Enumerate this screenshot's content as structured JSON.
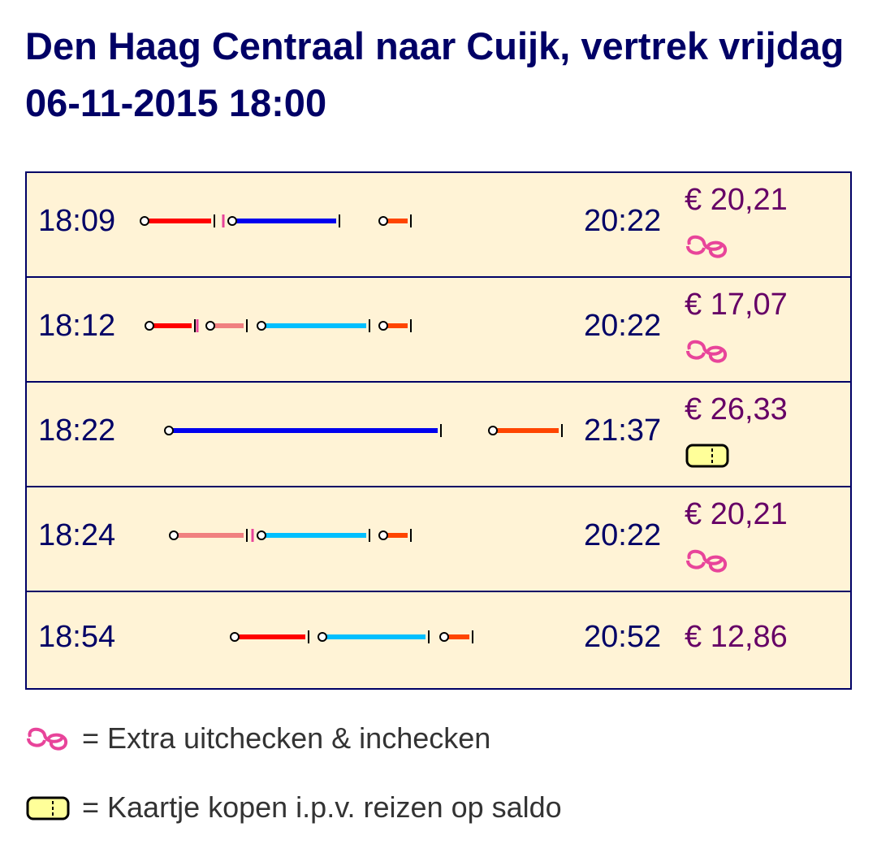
{
  "header": {
    "title": "Den Haag Centraal naar Cuijk, vertrek vrijdag 06-11-2015 18:00"
  },
  "table": {
    "rows": [
      {
        "departure": "18:09",
        "arrival": "20:22",
        "price": "€ 20,21"
      },
      {
        "departure": "18:12",
        "arrival": "20:22",
        "price": "€ 17,07"
      },
      {
        "departure": "18:22",
        "arrival": "21:37",
        "price": "€ 26,33"
      },
      {
        "departure": "18:24",
        "arrival": "20:22",
        "price": "€ 20,21"
      },
      {
        "departure": "18:54",
        "arrival": "20:52",
        "price": "€ 12,86"
      }
    ]
  },
  "legend": [
    {
      "text": "= Extra uitchecken & inchecken"
    },
    {
      "text": "= Kaartje kopen i.p.v. reizen op saldo"
    }
  ]
}
